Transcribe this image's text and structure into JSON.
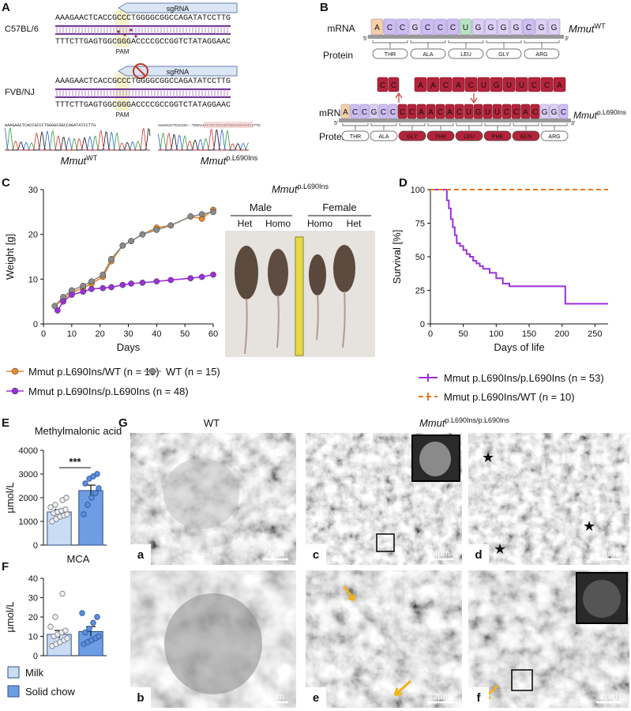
{
  "figure": {
    "panel_labels": [
      "A",
      "B",
      "C",
      "D",
      "E",
      "F",
      "G"
    ],
    "panel_a": {
      "strains": [
        "C57BL/6",
        "FVB/NJ"
      ],
      "top_seq": "AAAGAACTCACCGCCCTGGGGCGGCCAGATATCCTTG",
      "bottom_seq": "TTTCTTGAGTGGCGGGACCCCGCCGGTCTATAGGAAC",
      "sgrna": "sgRNA",
      "pam": "PAM",
      "chrom_wt": "AAAGAACTCACCGCCCTGGGGCGGCCAGATATCCTTG",
      "chrom_mut": "AAAGAACTCACCGC--TGGAACACTGTTCCAGCGGCCAGATATCCTTG",
      "gene": "Mmut",
      "wt": "WT",
      "mut": "p.L690Ins"
    },
    "panel_b": {
      "mrna": "mRNA",
      "protein": "Protein",
      "five": "5'",
      "three": "3'",
      "gene": "Mmut",
      "wt": "WT",
      "mut": "p.L690Ins",
      "wt_letters": [
        "A",
        "C",
        "C",
        "G",
        "C",
        "C",
        "C",
        "U",
        "G",
        "G",
        "G",
        "G",
        "C",
        "G",
        "G"
      ],
      "wt_proteins": [
        "THR",
        "ALA",
        "LEU",
        "GLY",
        "ARG"
      ],
      "insert_small": [
        "C",
        "C"
      ],
      "insert_large": [
        "A",
        "A",
        "C",
        "A",
        "C",
        "U",
        "G",
        "U",
        "U",
        "C",
        "C",
        "A"
      ],
      "mut_letters": [
        "A",
        "C",
        "C",
        "G",
        "C",
        "C",
        "C",
        "C",
        "A",
        "A",
        "C",
        "A",
        "C",
        "U",
        "G",
        "U",
        "U",
        "C",
        "C",
        "A",
        "C",
        "G",
        "G",
        "C"
      ],
      "mut_proteins": [
        "THR",
        "ALA",
        "GLY",
        "THR",
        "LEU",
        "PHE",
        "GLN",
        "ARG"
      ]
    },
    "panel_c_photo": {
      "gene": "Mmut",
      "allele": "p.L690Ins",
      "sexes": [
        "Male",
        "Female"
      ],
      "genotypes": [
        "Het",
        "Homo",
        "Homo",
        "Het"
      ]
    },
    "panel_g": {
      "headers": [
        "WT",
        "Mmut",
        "p.L690Ins/p.L690Ins"
      ],
      "letters": [
        "a",
        "b",
        "c",
        "d",
        "e",
        "f"
      ],
      "scales": [
        "4µm",
        "2µm",
        "4µm",
        "4µm",
        "2µm",
        "2µm"
      ]
    }
  },
  "chart_data": [
    {
      "type": "line",
      "xlabel": "Days",
      "ylabel": "Weight [g]",
      "xlim": [
        0,
        60
      ],
      "xticks": [
        0,
        10,
        20,
        30,
        40,
        50,
        60
      ],
      "ylim": [
        0,
        30
      ],
      "yticks": [
        0,
        10,
        20,
        30
      ],
      "markers": true,
      "series": [
        {
          "name": "Mmut p.L690Ins/WT (n = 19)",
          "color": "#e8892b",
          "x": [
            4,
            7,
            10,
            14,
            17,
            21,
            24,
            28,
            31,
            35,
            40,
            45,
            52,
            56,
            60
          ],
          "values": [
            4,
            5.5,
            7,
            8,
            9,
            10.5,
            14,
            17.5,
            18.5,
            20,
            21.5,
            22,
            24,
            23.5,
            25.5
          ]
        },
        {
          "name": "WT (n = 15)",
          "color": "#8a8a8a",
          "x": [
            4,
            7,
            10,
            14,
            17,
            21,
            24,
            28,
            31,
            35,
            40,
            45,
            52,
            56,
            60
          ],
          "values": [
            4,
            6,
            7.5,
            8.5,
            9.5,
            11,
            14.5,
            17.5,
            18.5,
            20,
            21,
            22,
            24,
            24.5,
            25
          ]
        },
        {
          "name": "Mmut p.L690Ins/p.L690Ins (n = 48)",
          "color": "#9b30d9",
          "x": [
            5,
            7,
            10,
            14,
            17,
            21,
            24,
            28,
            31,
            35,
            40,
            45,
            52,
            56,
            60
          ],
          "values": [
            3,
            5,
            6.5,
            7.2,
            7.8,
            8,
            8.2,
            8.7,
            9,
            9.2,
            9.5,
            9.8,
            10.2,
            10.5,
            11
          ]
        }
      ]
    },
    {
      "type": "line",
      "step": true,
      "xlabel": "Days of life",
      "ylabel": "Survival [%]",
      "xlim": [
        0,
        270
      ],
      "xticks": [
        0,
        50,
        100,
        150,
        200,
        250
      ],
      "ylim": [
        0,
        100
      ],
      "yticks": [
        0,
        25,
        50,
        75,
        100
      ],
      "series": [
        {
          "name": "Mmut p.L690Ins/p.L690Ins (n = 53)",
          "color": "#9b30d9",
          "linestyle": "solid",
          "x": [
            0,
            22,
            25,
            28,
            31,
            34,
            37,
            40,
            45,
            50,
            55,
            60,
            65,
            70,
            75,
            80,
            90,
            100,
            110,
            120,
            200,
            205,
            270
          ],
          "values": [
            100,
            100,
            92,
            86,
            78,
            72,
            66,
            60,
            58,
            55,
            52,
            50,
            47,
            45,
            43,
            41,
            38,
            34,
            30,
            28,
            28,
            15,
            15
          ]
        },
        {
          "name": "Mmut p.L690Ins/WT (n = 10)",
          "color": "#e8761e",
          "linestyle": "dashed",
          "x": [
            0,
            270
          ],
          "values": [
            100,
            100
          ]
        }
      ]
    },
    {
      "type": "bar",
      "title": "Methylmalonic acid",
      "ylabel": "µmol/L",
      "ylim": [
        0,
        4000
      ],
      "yticks": [
        0,
        1000,
        2000,
        3000,
        4000
      ],
      "colors": [
        "#c9dcf3",
        "#6d9de3"
      ],
      "values": [
        1400,
        2300
      ],
      "errors": [
        100,
        230
      ],
      "points": [
        [
          1000,
          1100,
          1200,
          1250,
          1300,
          1350,
          1400,
          1450,
          1500,
          1600,
          1700,
          1900,
          2000
        ],
        [
          1300,
          1700,
          2000,
          2200,
          2400,
          2600,
          2800,
          2900,
          3000
        ]
      ],
      "annotation": "***"
    },
    {
      "type": "bar",
      "title": "MCA",
      "ylabel": "µmol/L",
      "ylim": [
        0,
        40
      ],
      "yticks": [
        0,
        10,
        20,
        30,
        40
      ],
      "categories": [
        "Milk",
        "Solid chow"
      ],
      "colors": [
        "#c9dcf3",
        "#6d9de3"
      ],
      "values": [
        11,
        12.5
      ],
      "errors": [
        2,
        2.5
      ],
      "points": [
        [
          5,
          6,
          7,
          8,
          9,
          10,
          11,
          12,
          13,
          15,
          20,
          32
        ],
        [
          6,
          7,
          8,
          9,
          10,
          12,
          14,
          17,
          20,
          22
        ]
      ]
    }
  ]
}
